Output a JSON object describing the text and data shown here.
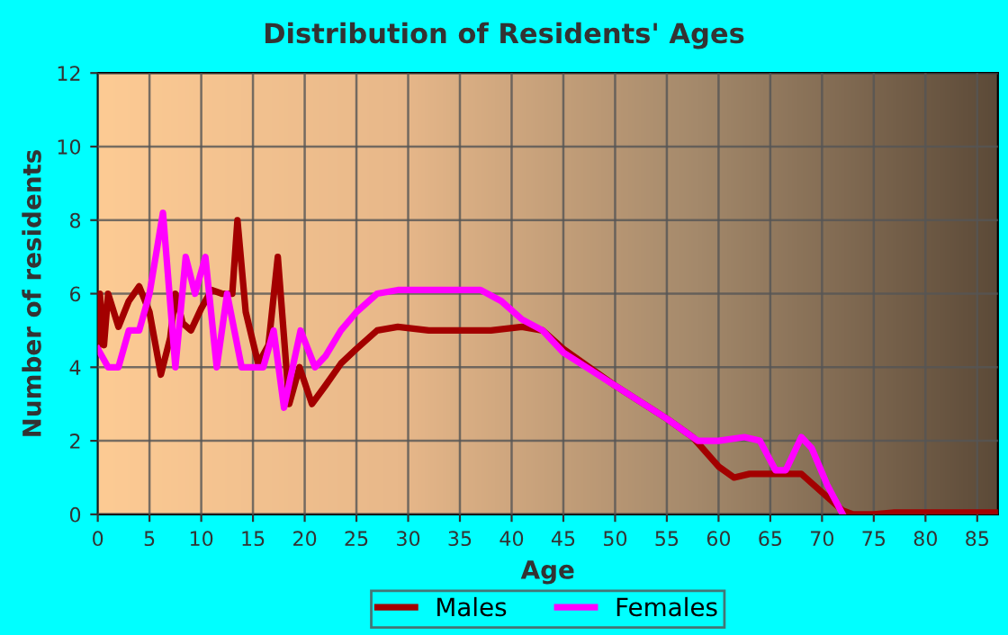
{
  "chart_data": {
    "type": "line",
    "title": "Distribution of Residents' Ages",
    "xlabel": "Age",
    "ylabel": "Number of residents",
    "xlim": [
      0,
      87
    ],
    "xticks": [
      0,
      5,
      10,
      15,
      20,
      25,
      30,
      35,
      40,
      45,
      50,
      55,
      60,
      65,
      70,
      75,
      80,
      85
    ],
    "ylim": [
      0,
      12
    ],
    "yticks": [
      0,
      2,
      4,
      6,
      8,
      10,
      12
    ],
    "grid": true,
    "legend": "bottom",
    "line_style": "solid",
    "series": [
      {
        "name": "Males",
        "color": "#a30000",
        "x": [
          0,
          0.2,
          0.6,
          1,
          2,
          3,
          4,
          5,
          6.1,
          7,
          7.5,
          8.2,
          9,
          10,
          11,
          12,
          13,
          13.5,
          14.3,
          15.5,
          16.5,
          17.4,
          18.5,
          19.5,
          20.7,
          22,
          23.5,
          25,
          27,
          29,
          32,
          35,
          38,
          41,
          43,
          45,
          50,
          55,
          57.5,
          60,
          61.5,
          63,
          65,
          67,
          68,
          70,
          72,
          73,
          75,
          77,
          80,
          87
        ],
        "values": [
          4.5,
          6.0,
          4.6,
          6.0,
          5.1,
          5.8,
          6.2,
          5.5,
          3.8,
          4.8,
          6.0,
          5.2,
          5.0,
          5.6,
          6.1,
          6.0,
          6.0,
          8.0,
          5.5,
          4.1,
          4.6,
          7.0,
          3.0,
          4.0,
          3.0,
          3.5,
          4.1,
          4.5,
          5.0,
          5.1,
          5.0,
          5.0,
          5.0,
          5.1,
          5.0,
          4.5,
          3.5,
          2.6,
          2.1,
          1.3,
          1.0,
          1.1,
          1.1,
          1.1,
          1.1,
          0.6,
          0.1,
          0.0,
          0.0,
          0.05,
          0.05,
          0.05
        ]
      },
      {
        "name": "Females",
        "color": "#ff00ff",
        "x": [
          0,
          1,
          2,
          3,
          4,
          5,
          6.3,
          7.5,
          8.5,
          9.4,
          10.4,
          11.5,
          12.5,
          13.9,
          15,
          16,
          17,
          18,
          19.6,
          21,
          22,
          23.5,
          25,
          27,
          29,
          32,
          35,
          37,
          39,
          41,
          43,
          45,
          50,
          55,
          58,
          60,
          62.5,
          64,
          65.5,
          66.5,
          68,
          69,
          70.5,
          72
        ],
        "values": [
          4.5,
          4.0,
          4.0,
          5.0,
          5.0,
          6.0,
          8.2,
          4.0,
          7.0,
          6.0,
          7.0,
          4.0,
          6.0,
          4.0,
          4.0,
          4.0,
          5.0,
          2.9,
          5.0,
          4.0,
          4.3,
          5.0,
          5.5,
          6.0,
          6.1,
          6.1,
          6.1,
          6.1,
          5.8,
          5.3,
          5.0,
          4.4,
          3.5,
          2.6,
          2.0,
          2.0,
          2.1,
          2.0,
          1.2,
          1.2,
          2.1,
          1.8,
          0.8,
          0.0
        ]
      }
    ]
  }
}
